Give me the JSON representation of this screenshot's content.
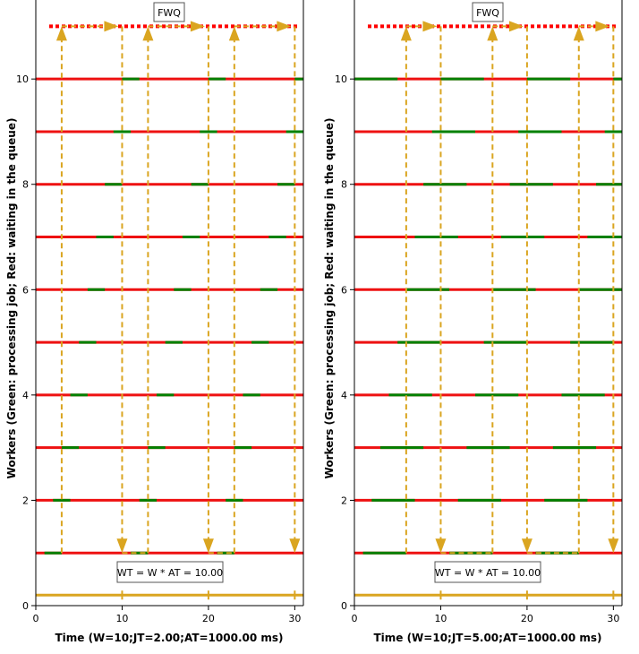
{
  "colors": {
    "processing": "#008000",
    "waiting": "#ee1111",
    "queue": "#ff0000",
    "arrow": "#daa520",
    "frame": "#000000"
  },
  "chart_data": [
    {
      "type": "timeline",
      "title": "FWQ",
      "xlabel": "Time (W=10;JT=2.00;AT=1000.00 ms)",
      "ylabel": "Workers (Green: processing job; Red: waiting in the queue)",
      "annotation": "WT = W * AT = 10.00",
      "xlim": [
        0,
        31
      ],
      "ylim": [
        0,
        11.5
      ],
      "xticks": [
        0,
        10,
        20,
        30
      ],
      "yticks": [
        0,
        2,
        4,
        6,
        8,
        10
      ],
      "job_time": 2,
      "arrivals": [
        3,
        13,
        23
      ],
      "completions": [
        10,
        20,
        30
      ],
      "workers": [
        {
          "worker": 1,
          "processing": [
            [
              1,
              3
            ],
            [
              11,
              13
            ],
            [
              21,
              23
            ]
          ]
        },
        {
          "worker": 2,
          "processing": [
            [
              2,
              4
            ],
            [
              12,
              14
            ],
            [
              22,
              24
            ]
          ]
        },
        {
          "worker": 3,
          "processing": [
            [
              3,
              5
            ],
            [
              13,
              15
            ],
            [
              23,
              25
            ]
          ]
        },
        {
          "worker": 4,
          "processing": [
            [
              4,
              6
            ],
            [
              14,
              16
            ],
            [
              24,
              26
            ]
          ]
        },
        {
          "worker": 5,
          "processing": [
            [
              5,
              7
            ],
            [
              15,
              17
            ],
            [
              25,
              27
            ]
          ]
        },
        {
          "worker": 6,
          "processing": [
            [
              6,
              8
            ],
            [
              16,
              18
            ],
            [
              26,
              28
            ]
          ]
        },
        {
          "worker": 7,
          "processing": [
            [
              7,
              9
            ],
            [
              17,
              19
            ],
            [
              27,
              29
            ]
          ]
        },
        {
          "worker": 8,
          "processing": [
            [
              8,
              10
            ],
            [
              18,
              20
            ],
            [
              28,
              30
            ]
          ]
        },
        {
          "worker": 9,
          "processing": [
            [
              9,
              11
            ],
            [
              19,
              21
            ],
            [
              29,
              31
            ]
          ]
        },
        {
          "worker": 10,
          "processing": [
            [
              10,
              12
            ],
            [
              20,
              22
            ],
            [
              30,
              31
            ]
          ]
        }
      ]
    },
    {
      "type": "timeline",
      "title": "FWQ",
      "xlabel": "Time (W=10;JT=5.00;AT=1000.00 ms)",
      "ylabel": "Workers (Green: processing job; Red: waiting in the queue)",
      "annotation": "WT = W * AT = 10.00",
      "xlim": [
        0,
        31
      ],
      "ylim": [
        0,
        11.5
      ],
      "xticks": [
        0,
        10,
        20,
        30
      ],
      "yticks": [
        0,
        2,
        4,
        6,
        8,
        10
      ],
      "job_time": 5,
      "arrivals": [
        6,
        16,
        26
      ],
      "completions": [
        10,
        20,
        30
      ],
      "workers": [
        {
          "worker": 1,
          "processing": [
            [
              1,
              6
            ],
            [
              11,
              16
            ],
            [
              21,
              26
            ]
          ]
        },
        {
          "worker": 2,
          "processing": [
            [
              2,
              7
            ],
            [
              12,
              17
            ],
            [
              22,
              27
            ]
          ]
        },
        {
          "worker": 3,
          "processing": [
            [
              3,
              8
            ],
            [
              13,
              18
            ],
            [
              23,
              28
            ]
          ]
        },
        {
          "worker": 4,
          "processing": [
            [
              4,
              9
            ],
            [
              14,
              19
            ],
            [
              24,
              29
            ]
          ]
        },
        {
          "worker": 5,
          "processing": [
            [
              5,
              10
            ],
            [
              15,
              20
            ],
            [
              25,
              30
            ]
          ]
        },
        {
          "worker": 6,
          "processing": [
            [
              6,
              11
            ],
            [
              16,
              21
            ],
            [
              26,
              31
            ]
          ]
        },
        {
          "worker": 7,
          "processing": [
            [
              7,
              12
            ],
            [
              17,
              22
            ],
            [
              27,
              31
            ]
          ]
        },
        {
          "worker": 8,
          "processing": [
            [
              8,
              13
            ],
            [
              18,
              23
            ],
            [
              28,
              31
            ]
          ]
        },
        {
          "worker": 9,
          "processing": [
            [
              9,
              14
            ],
            [
              19,
              24
            ],
            [
              29,
              31
            ]
          ]
        },
        {
          "worker": 10,
          "processing": [
            [
              0,
              5
            ],
            [
              10,
              15
            ],
            [
              20,
              25
            ],
            [
              30,
              31
            ]
          ]
        }
      ]
    }
  ]
}
